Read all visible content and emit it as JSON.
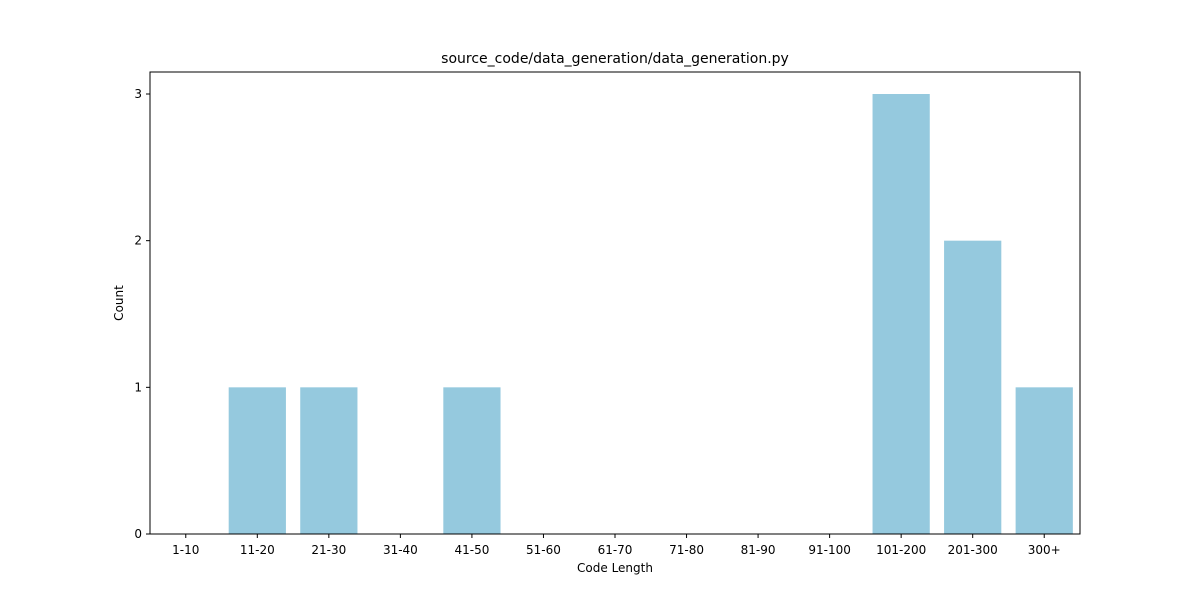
{
  "chart_data": {
    "type": "bar",
    "title": "source_code/data_generation/data_generation.py",
    "xlabel": "Code Length",
    "ylabel": "Count",
    "categories": [
      "1-10",
      "11-20",
      "21-30",
      "31-40",
      "41-50",
      "51-60",
      "61-70",
      "71-80",
      "81-90",
      "91-100",
      "101-200",
      "201-300",
      "300+"
    ],
    "values": [
      0,
      1,
      1,
      0,
      1,
      0,
      0,
      0,
      0,
      0,
      3,
      2,
      1
    ],
    "ylim": [
      0,
      3.15
    ],
    "yticks": [
      "0",
      "1",
      "2",
      "3"
    ],
    "grid": false,
    "bar_color": "#95c9de"
  }
}
